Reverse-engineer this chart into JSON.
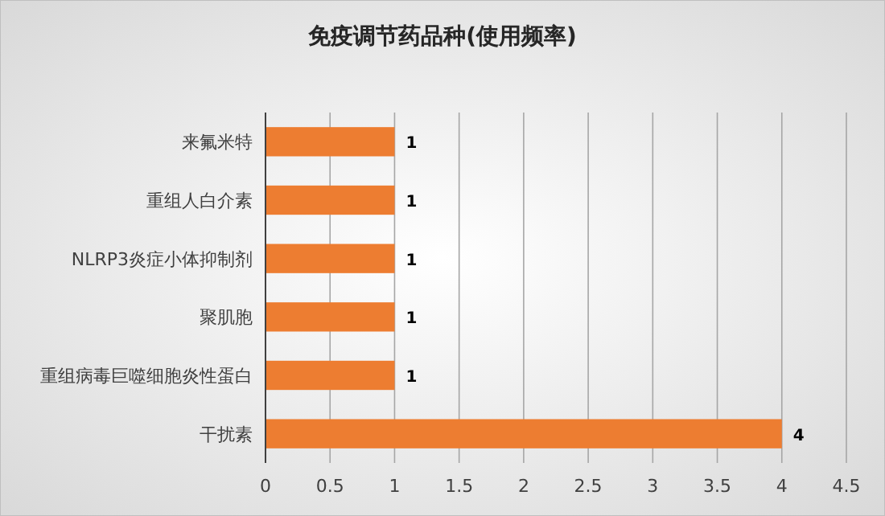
{
  "chart_data": {
    "type": "bar",
    "orientation": "horizontal",
    "title": "免疫调节药品种(使用频率)",
    "categories": [
      "来氟米特",
      "重组人白介素",
      "NLRP3炎症小体抑制剂",
      "聚肌胞",
      "重组病毒巨噬细胞炎性蛋白",
      "干扰素"
    ],
    "values": [
      1,
      1,
      1,
      1,
      1,
      4
    ],
    "color": "#ed7d31",
    "xlim": [
      0,
      4.5
    ],
    "xticks": [
      0,
      0.5,
      1,
      1.5,
      2,
      2.5,
      3,
      3.5,
      4,
      4.5
    ],
    "grid": "x",
    "data_labels": true
  }
}
